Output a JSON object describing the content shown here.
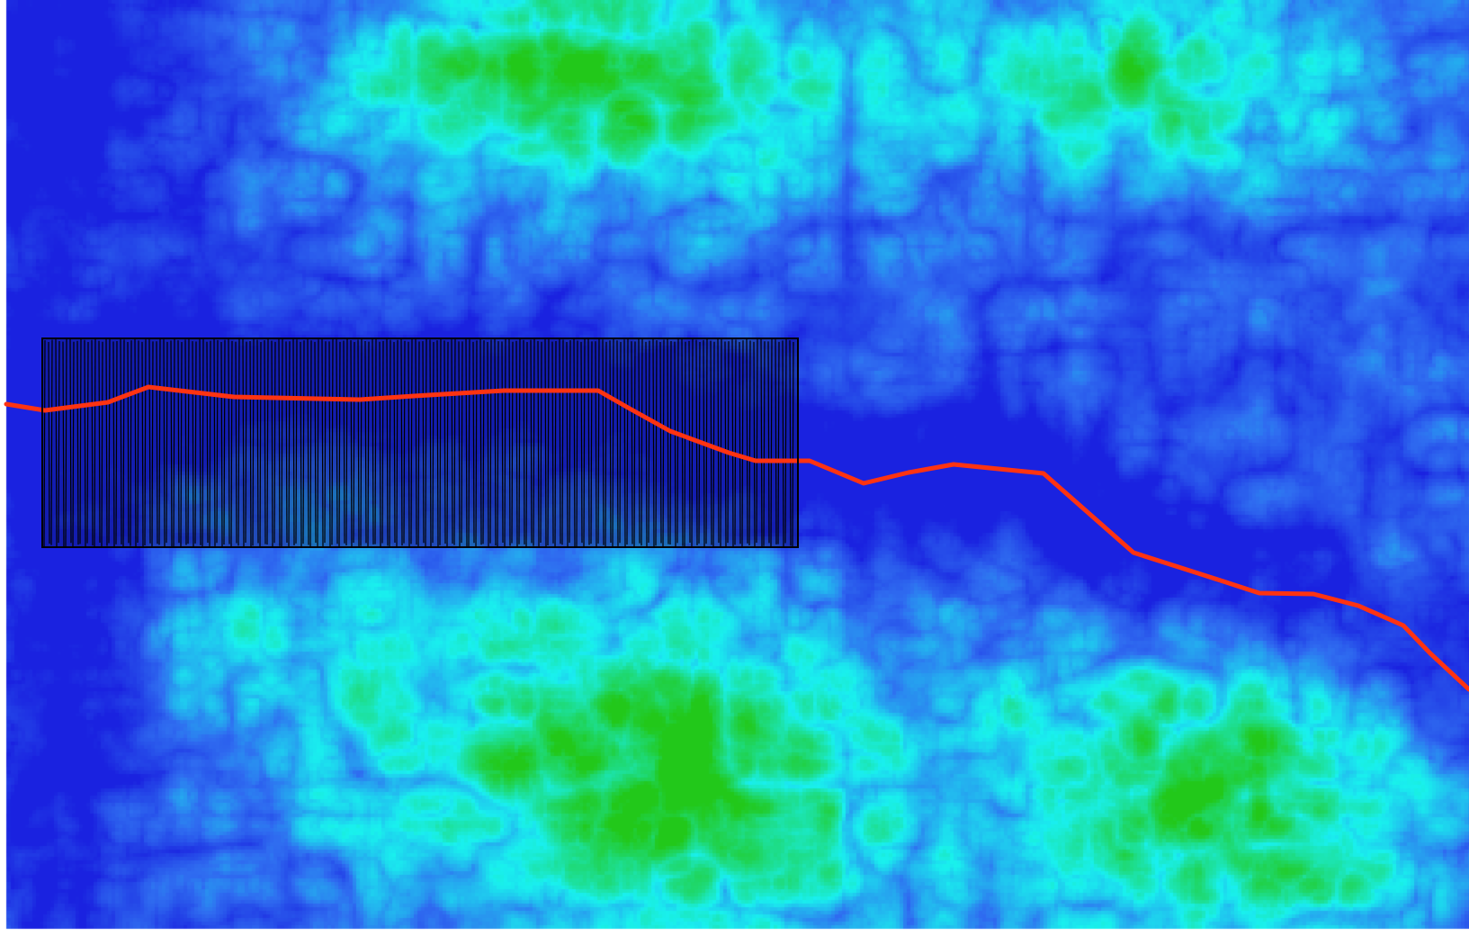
{
  "map": {
    "layers": [
      {
        "id": "dem",
        "kind": "raster",
        "color_ramp": [
          "#1a22e0",
          "#2f6cf0",
          "#19f0ee",
          "#22c81a"
        ],
        "visible": true
      },
      {
        "id": "cross-sections",
        "kind": "vector-lines",
        "stroke": "#000000",
        "visible": true
      },
      {
        "id": "river-path",
        "kind": "vector-line",
        "stroke": "#ff3311",
        "visible": true
      }
    ]
  }
}
